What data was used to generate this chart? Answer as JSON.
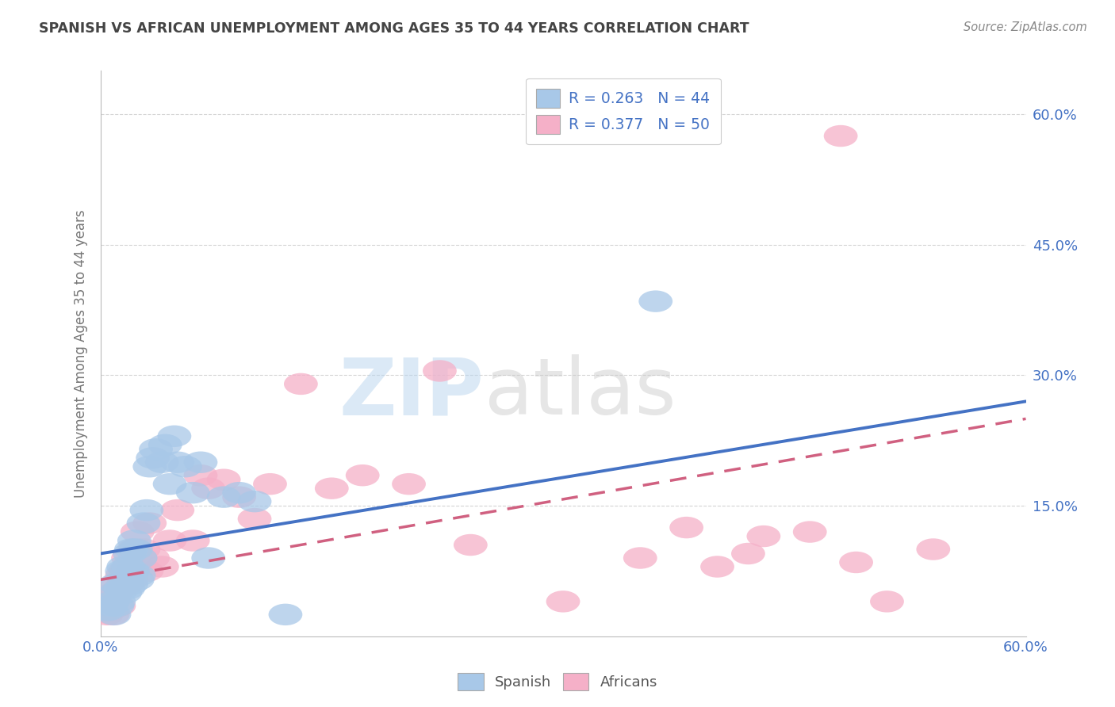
{
  "title": "SPANISH VS AFRICAN UNEMPLOYMENT AMONG AGES 35 TO 44 YEARS CORRELATION CHART",
  "source": "Source: ZipAtlas.com",
  "ylabel_label": "Unemployment Among Ages 35 to 44 years",
  "watermark_zip": "ZIP",
  "watermark_atlas": "atlas",
  "spanish_x": [
    0.005,
    0.007,
    0.008,
    0.009,
    0.01,
    0.01,
    0.011,
    0.012,
    0.013,
    0.014,
    0.015,
    0.015,
    0.016,
    0.017,
    0.018,
    0.018,
    0.019,
    0.02,
    0.02,
    0.021,
    0.022,
    0.023,
    0.024,
    0.025,
    0.026,
    0.028,
    0.03,
    0.032,
    0.034,
    0.036,
    0.04,
    0.042,
    0.045,
    0.048,
    0.05,
    0.055,
    0.06,
    0.065,
    0.07,
    0.08,
    0.09,
    0.1,
    0.12,
    0.36
  ],
  "spanish_y": [
    0.03,
    0.035,
    0.04,
    0.025,
    0.05,
    0.06,
    0.035,
    0.04,
    0.055,
    0.075,
    0.055,
    0.08,
    0.05,
    0.065,
    0.055,
    0.08,
    0.095,
    0.06,
    0.1,
    0.075,
    0.11,
    0.1,
    0.065,
    0.07,
    0.09,
    0.13,
    0.145,
    0.195,
    0.205,
    0.215,
    0.2,
    0.22,
    0.175,
    0.23,
    0.2,
    0.195,
    0.165,
    0.2,
    0.09,
    0.16,
    0.165,
    0.155,
    0.025,
    0.385
  ],
  "africans_x": [
    0.004,
    0.006,
    0.007,
    0.008,
    0.009,
    0.01,
    0.011,
    0.012,
    0.013,
    0.014,
    0.015,
    0.016,
    0.017,
    0.018,
    0.019,
    0.02,
    0.022,
    0.024,
    0.026,
    0.028,
    0.03,
    0.032,
    0.034,
    0.04,
    0.045,
    0.05,
    0.06,
    0.065,
    0.07,
    0.08,
    0.09,
    0.1,
    0.11,
    0.13,
    0.15,
    0.17,
    0.2,
    0.22,
    0.24,
    0.3,
    0.35,
    0.38,
    0.4,
    0.42,
    0.43,
    0.46,
    0.48,
    0.49,
    0.51,
    0.54
  ],
  "africans_y": [
    0.025,
    0.03,
    0.04,
    0.025,
    0.05,
    0.05,
    0.06,
    0.035,
    0.055,
    0.07,
    0.06,
    0.075,
    0.06,
    0.09,
    0.08,
    0.065,
    0.1,
    0.12,
    0.09,
    0.1,
    0.075,
    0.13,
    0.09,
    0.08,
    0.11,
    0.145,
    0.11,
    0.185,
    0.17,
    0.18,
    0.16,
    0.135,
    0.175,
    0.29,
    0.17,
    0.185,
    0.175,
    0.305,
    0.105,
    0.04,
    0.09,
    0.125,
    0.08,
    0.095,
    0.115,
    0.12,
    0.575,
    0.085,
    0.04,
    0.1
  ],
  "spanish_color": "#A8C8E8",
  "africans_color": "#F5B0C8",
  "spanish_line_color": "#4472C4",
  "africans_line_color": "#D06080",
  "bg_color": "#ffffff",
  "grid_color": "#d0d0d0",
  "title_color": "#444444",
  "source_color": "#888888",
  "tick_color": "#4472C4",
  "xlim": [
    0.0,
    0.6
  ],
  "ylim": [
    0.0,
    0.65
  ],
  "spanish_line_x0": 0.0,
  "spanish_line_y0": 0.095,
  "spanish_line_x1": 0.6,
  "spanish_line_y1": 0.27,
  "africans_line_x0": 0.0,
  "africans_line_y0": 0.065,
  "africans_line_x1": 0.6,
  "africans_line_y1": 0.25
}
